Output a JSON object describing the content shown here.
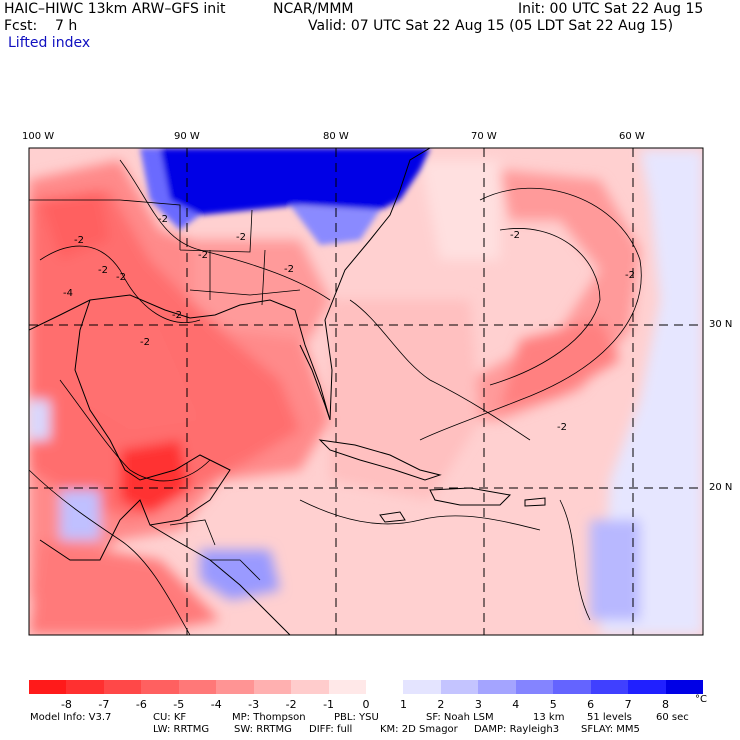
{
  "header": {
    "title": "HAIC–HIWC 13km ARW–GFS init",
    "org": "NCAR/MMM",
    "init": "Init: 00 UTC Sat 22 Aug 15",
    "fcst": "Fcst:    7 h",
    "valid": "Valid: 07 UTC Sat 22 Aug 15 (05 LDT Sat 22 Aug 15)",
    "field": "Lifted index"
  },
  "map": {
    "lon_labels": [
      "100 W",
      "90 W",
      "80 W",
      "70 W",
      "60 W"
    ],
    "lat_labels": [
      "30 N",
      "20 N"
    ],
    "contour_labels": [
      "-2",
      "-2",
      "-2",
      "-2",
      "-2",
      "-2",
      "-2",
      "-2",
      "-2",
      "-4",
      "-2",
      "-2",
      "-2"
    ]
  },
  "colorbar": {
    "labels": [
      "-8",
      "-7",
      "-6",
      "-5",
      "-4",
      "-3",
      "-2",
      "-1",
      "0",
      "1",
      "2",
      "3",
      "4",
      "5",
      "6",
      "7",
      "8"
    ],
    "unit": "°C",
    "colors": [
      "#ff1a1a",
      "#ff3030",
      "#ff4848",
      "#ff6060",
      "#ff7878",
      "#ff9494",
      "#ffb0b0",
      "#ffcccc",
      "#ffe8e8",
      "#ffffff",
      "#e4e4ff",
      "#c4c4ff",
      "#a4a4ff",
      "#8484ff",
      "#6464ff",
      "#4040ff",
      "#2020ff",
      "#0000e6"
    ]
  },
  "footer": {
    "line1": [
      "Model Info: V3.7",
      "CU: KF",
      "MP: Thompson",
      "PBL: YSU",
      "SF: Noah LSM",
      "13 km",
      "51 levels",
      "60 sec"
    ],
    "line2": [
      "LW: RRTMG",
      "SW: RRTMG",
      "DIFF: full",
      "KM: 2D Smagor",
      "DAMP: Rayleigh3",
      "SFLAY: MM5"
    ]
  }
}
